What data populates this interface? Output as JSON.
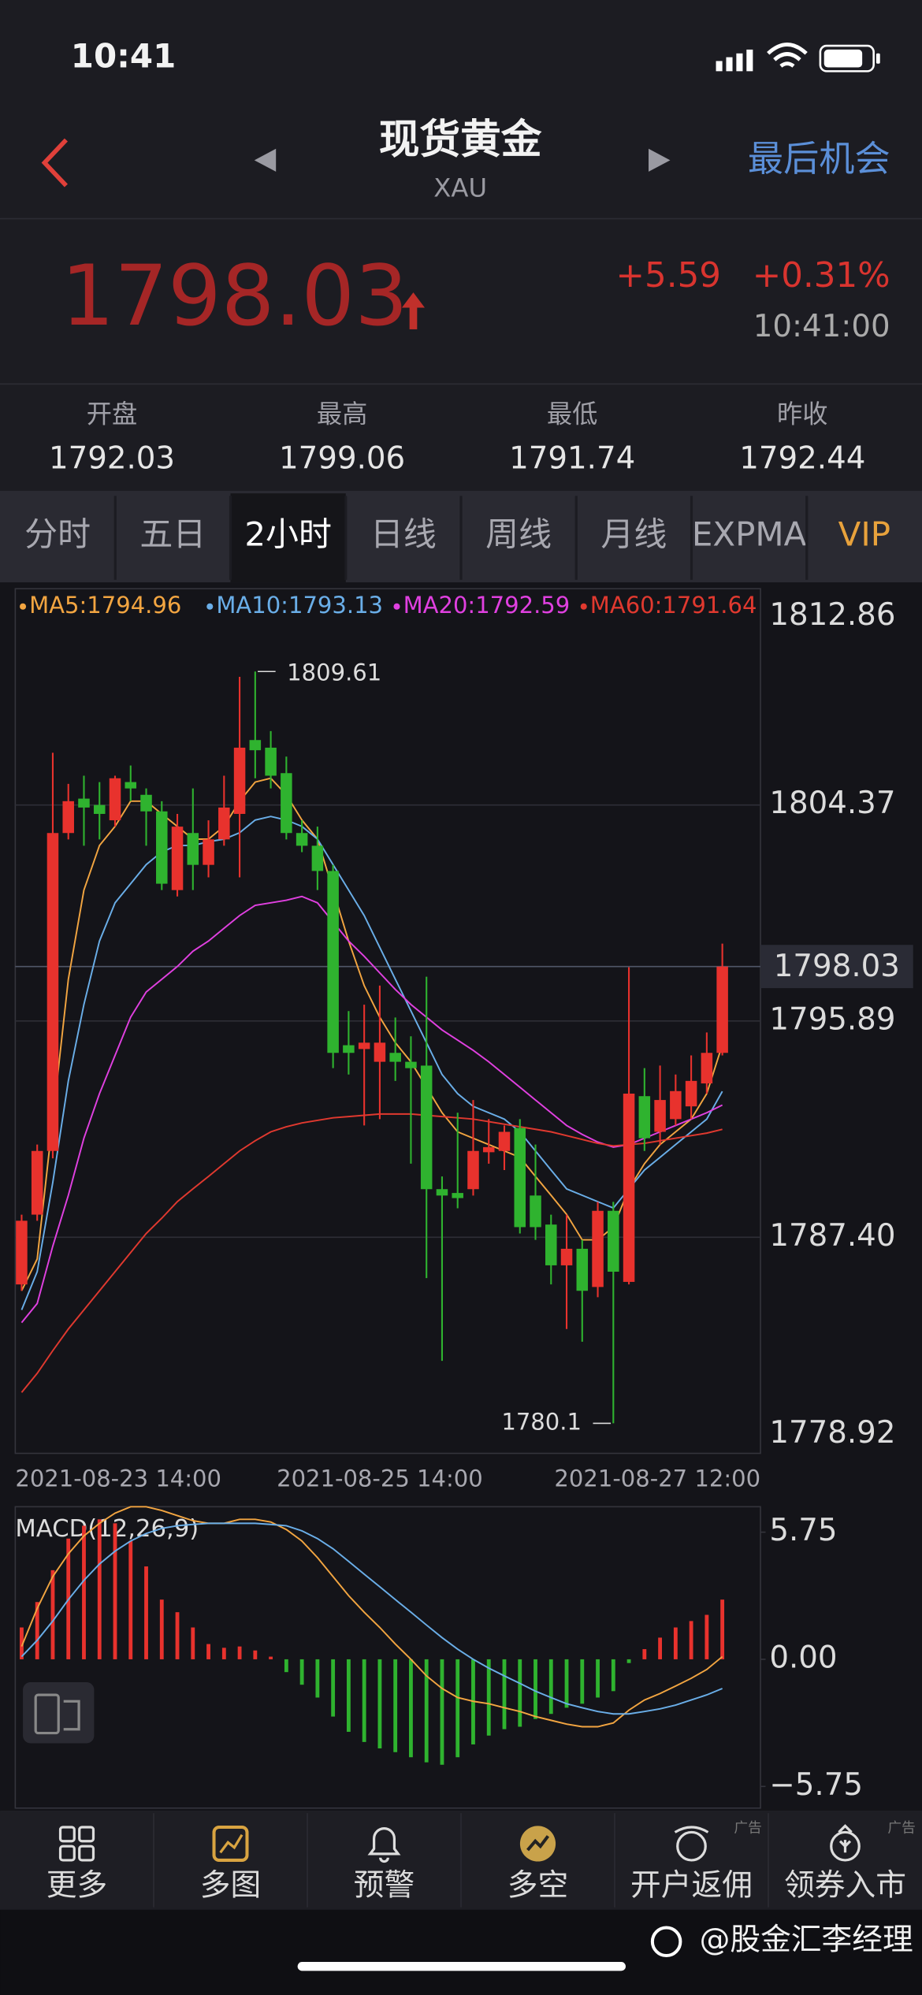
{
  "status_bar": {
    "time": "10:41"
  },
  "header": {
    "title": "现货黄金",
    "subtitle": "XAU",
    "link": "最后机会"
  },
  "quote": {
    "price": "1798.03",
    "change": "+5.59",
    "change_pct": "+0.31%",
    "time": "10:41:00"
  },
  "stats": {
    "labels": [
      "开盘",
      "最高",
      "最低",
      "昨收"
    ],
    "values": [
      "1792.03",
      "1799.06",
      "1791.74",
      "1792.44"
    ]
  },
  "tabs": [
    "分时",
    "五日",
    "2小时",
    "日线",
    "周线",
    "月线",
    "EXPMA",
    "VIP"
  ],
  "chart_data": [
    {
      "type": "candlestick",
      "categories": [
        "2021-08-23 14:00",
        null,
        null,
        null,
        null,
        null,
        null,
        null,
        null,
        null,
        null,
        null,
        null,
        null,
        null,
        null,
        null,
        null,
        null,
        null,
        null,
        null,
        null,
        "2021-08-25 14:00",
        null,
        null,
        null,
        null,
        null,
        null,
        null,
        null,
        null,
        null,
        null,
        null,
        null,
        null,
        null,
        null,
        null,
        null,
        null,
        null,
        null,
        "2021-08-27 12:00"
      ],
      "open": [
        1785.55,
        1788.29,
        1790.79,
        1803.27,
        1804.62,
        1804.37,
        1803.77,
        1805.27,
        1804.77,
        1804.12,
        1801.03,
        1803.27,
        1802.02,
        1803.02,
        1804.02,
        1806.92,
        1806.62,
        1805.62,
        1803.27,
        1802.77,
        1801.78,
        1794.94,
        1794.79,
        1794.29,
        1794.64,
        1794.29,
        1794.14,
        1789.29,
        1789.14,
        1789.29,
        1790.74,
        1790.79,
        1791.69,
        1789.04,
        1787.9,
        1786.3,
        1786.95,
        1785.45,
        1788.44,
        1785.65,
        1792.94,
        1791.54,
        1792.04,
        1792.54,
        1793.44,
        1794.64
      ],
      "high": [
        1788.29,
        1791.04,
        1806.42,
        1805.2,
        1805.52,
        1805.27,
        1805.52,
        1805.92,
        1805.02,
        1804.52,
        1804.02,
        1805.02,
        1803.77,
        1805.52,
        1809.4,
        1809.61,
        1807.27,
        1806.27,
        1803.77,
        1803.52,
        1802.02,
        1796.28,
        1796.53,
        1797.28,
        1796.03,
        1795.29,
        1797.63,
        1789.79,
        1792.29,
        1792.79,
        1792.04,
        1791.79,
        1792.04,
        1791.04,
        1788.29,
        1788.29,
        1787.3,
        1788.79,
        1788.79,
        1798.0,
        1794.04,
        1794.14,
        1793.79,
        1794.54,
        1795.44,
        1798.93
      ],
      "low": [
        1785.3,
        1788.05,
        1790.5,
        1803.02,
        1802.77,
        1803.02,
        1803.52,
        1804.52,
        1802.77,
        1801.03,
        1800.78,
        1801.03,
        1801.53,
        1802.77,
        1801.53,
        1805.42,
        1805.02,
        1803.02,
        1802.52,
        1801.03,
        1794.04,
        1793.79,
        1791.79,
        1792.04,
        1793.54,
        1790.29,
        1785.8,
        1782.55,
        1788.54,
        1789.04,
        1790.29,
        1790.04,
        1787.55,
        1787.3,
        1785.55,
        1783.8,
        1783.3,
        1785.05,
        1780.1,
        1785.55,
        1790.79,
        1791.04,
        1791.79,
        1792.04,
        1793.04,
        1794.54
      ],
      "close": [
        1788.05,
        1790.79,
        1803.27,
        1804.52,
        1804.27,
        1804.02,
        1805.42,
        1805.02,
        1804.12,
        1801.28,
        1803.52,
        1802.02,
        1803.02,
        1804.27,
        1806.62,
        1806.52,
        1805.52,
        1803.27,
        1802.77,
        1801.78,
        1794.64,
        1794.64,
        1795.04,
        1795.04,
        1794.29,
        1794.04,
        1789.29,
        1789.04,
        1788.94,
        1790.79,
        1790.94,
        1791.54,
        1787.8,
        1787.8,
        1786.3,
        1786.95,
        1785.3,
        1788.44,
        1786.05,
        1793.04,
        1791.29,
        1792.79,
        1793.14,
        1793.54,
        1794.64,
        1798.03
      ],
      "up_color": "#e8322d",
      "down_color": "#2fb32f",
      "series": [
        {
          "name": "MA5:1794.96",
          "color": "#f2a541",
          "values": [
            1785.3,
            1786.55,
            1792.04,
            1797.53,
            1801.03,
            1802.78,
            1803.53,
            1804.52,
            1804.52,
            1804.02,
            1803.53,
            1803.03,
            1803.03,
            1803.53,
            1804.52,
            1805.27,
            1805.42,
            1804.77,
            1803.78,
            1803.03,
            1801.03,
            1799.03,
            1797.28,
            1796.04,
            1795.04,
            1794.29,
            1793.29,
            1792.29,
            1791.54,
            1791.29,
            1791.04,
            1790.79,
            1790.54,
            1789.79,
            1789.05,
            1788.3,
            1787.3,
            1787.3,
            1787.8,
            1789.3,
            1790.29,
            1791.04,
            1791.54,
            1792.04,
            1793.04,
            1794.96
          ]
        },
        {
          "name": "MA10:1793.13",
          "color": "#6aaee8",
          "values": [
            1784.55,
            1786.05,
            1789.55,
            1793.54,
            1796.54,
            1799.03,
            1800.53,
            1801.28,
            1802.03,
            1802.53,
            1802.78,
            1802.78,
            1802.93,
            1803.03,
            1803.28,
            1803.78,
            1803.92,
            1803.78,
            1803.53,
            1803.03,
            1802.03,
            1801.03,
            1800.03,
            1798.78,
            1797.53,
            1796.29,
            1795.04,
            1793.79,
            1793.04,
            1792.54,
            1792.29,
            1792.04,
            1791.54,
            1790.79,
            1790.04,
            1789.3,
            1789.05,
            1788.8,
            1788.55,
            1789.3,
            1790.04,
            1790.54,
            1791.04,
            1791.54,
            1792.04,
            1793.13
          ]
        },
        {
          "name": "MA20:1792.59",
          "color": "#e040e0",
          "values": [
            1784.05,
            1784.8,
            1787.05,
            1789.05,
            1791.29,
            1793.04,
            1794.54,
            1796.04,
            1797.03,
            1797.53,
            1798.03,
            1798.63,
            1799.03,
            1799.53,
            1800.03,
            1800.43,
            1800.53,
            1800.63,
            1800.78,
            1800.53,
            1799.78,
            1799.03,
            1798.43,
            1797.78,
            1797.13,
            1796.54,
            1796.04,
            1795.54,
            1795.14,
            1794.74,
            1794.29,
            1793.79,
            1793.29,
            1792.79,
            1792.29,
            1791.79,
            1791.44,
            1791.14,
            1790.94,
            1791.04,
            1791.29,
            1791.54,
            1791.79,
            1792.04,
            1792.29,
            1792.59
          ]
        },
        {
          "name": "MA60:1791.64",
          "color": "#e0392f",
          "values": [
            1781.31,
            1782.06,
            1782.95,
            1783.8,
            1784.55,
            1785.3,
            1786.05,
            1786.8,
            1787.55,
            1788.15,
            1788.8,
            1789.3,
            1789.79,
            1790.29,
            1790.79,
            1791.19,
            1791.54,
            1791.74,
            1791.89,
            1791.99,
            1792.09,
            1792.14,
            1792.19,
            1792.24,
            1792.24,
            1792.24,
            1792.19,
            1792.14,
            1792.09,
            1792.04,
            1791.94,
            1791.84,
            1791.74,
            1791.64,
            1791.54,
            1791.39,
            1791.24,
            1791.09,
            1790.99,
            1791.04,
            1791.09,
            1791.19,
            1791.29,
            1791.39,
            1791.49,
            1791.64
          ]
        }
      ],
      "ylim": [
        1778.92,
        1812.86
      ],
      "yticks": [
        1812.86,
        1804.37,
        1795.89,
        {
          "value": 1787.4,
          "label": "1787.40"
        },
        1778.92
      ],
      "grid": true
    },
    {
      "type": "macd",
      "title": "MACD(12,26,9)",
      "values": [
        1.44,
        2.59,
        4.03,
        5.46,
        6.04,
        6.33,
        6.15,
        5.35,
        4.2,
        2.7,
        2.13,
        1.44,
        0.69,
        0.52,
        0.58,
        0.4,
        0.12,
        -0.58,
        -1.15,
        -1.73,
        -2.59,
        -3.28,
        -3.74,
        -4.03,
        -4.2,
        -4.43,
        -4.66,
        -4.77,
        -4.43,
        -3.85,
        -3.45,
        -3.16,
        -3.05,
        -2.7,
        -2.47,
        -2.19,
        -2.01,
        -1.73,
        -1.44,
        -0.17,
        0.46,
        0.98,
        1.44,
        1.73,
        2.01,
        2.7
      ],
      "up_color": "#e8322d",
      "down_color": "#2fb32f",
      "series": [
        {
          "color": "#f2a541",
          "values": [
            0.58,
            2.3,
            3.74,
            4.77,
            5.58,
            6.15,
            6.61,
            6.9,
            6.9,
            6.73,
            6.5,
            6.27,
            6.15,
            6.15,
            6.33,
            6.33,
            6.21,
            5.87,
            5.35,
            4.6,
            3.74,
            2.88,
            2.13,
            1.44,
            0.69,
            0,
            -0.75,
            -1.32,
            -1.73,
            -1.9,
            -2.01,
            -2.19,
            -2.36,
            -2.59,
            -2.76,
            -2.93,
            -3.05,
            -3.05,
            -2.88,
            -2.3,
            -1.84,
            -1.55,
            -1.21,
            -0.86,
            -0.46,
            0.12
          ]
        },
        {
          "color": "#6aaee8",
          "values": [
            0.12,
            0.86,
            1.73,
            2.7,
            3.57,
            4.31,
            4.89,
            5.35,
            5.69,
            5.92,
            6.04,
            6.1,
            6.15,
            6.15,
            6.15,
            6.15,
            6.1,
            6.04,
            5.81,
            5.46,
            5,
            4.43,
            3.85,
            3.28,
            2.7,
            2.13,
            1.55,
            0.98,
            0.46,
            0,
            -0.4,
            -0.75,
            -1.09,
            -1.44,
            -1.73,
            -2.01,
            -2.19,
            -2.36,
            -2.47,
            -2.47,
            -2.36,
            -2.24,
            -2.07,
            -1.84,
            -1.61,
            -1.32
          ]
        }
      ],
      "ylim": [
        -6.73,
        6.9
      ],
      "yticks": [
        5.75,
        {
          "value": 0,
          "label": "0.00"
        },
        {
          "value": -5.75,
          "label": "−5.75"
        }
      ]
    }
  ],
  "nav": [
    {
      "label": "更多"
    },
    {
      "label": "多图"
    },
    {
      "label": "预警"
    },
    {
      "label": "多空"
    },
    {
      "label": "开户返佣",
      "tag": "广告"
    },
    {
      "label": "领券入市",
      "tag": "广告"
    }
  ],
  "watermark": "@股金汇李经理"
}
